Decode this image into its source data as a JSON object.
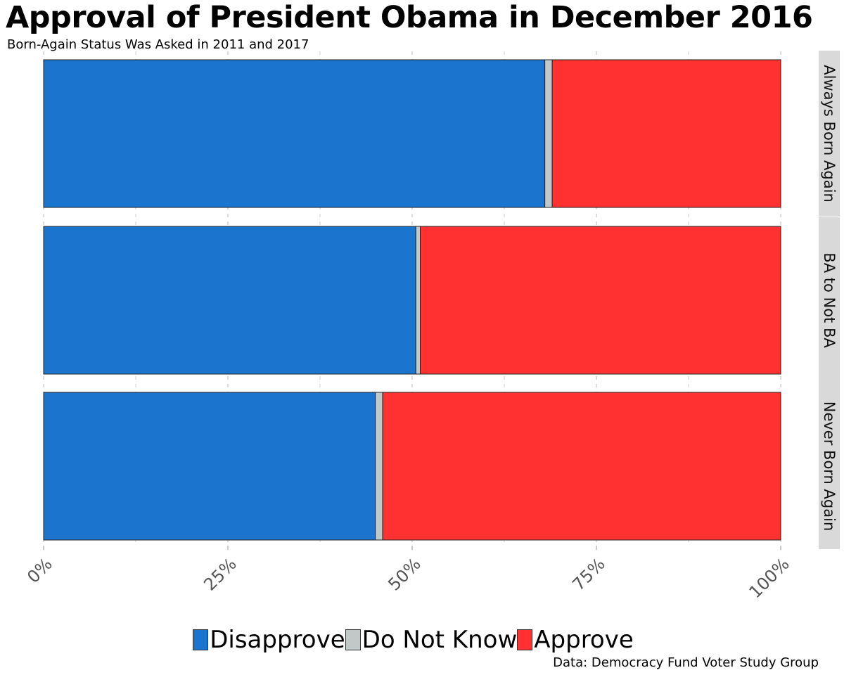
{
  "title": "Approval of President Obama in December 2016",
  "subtitle": "Born-Again Status Was Asked in 2011 and 2017",
  "caption": "Data: Democracy Fund Voter Study Group",
  "colors": {
    "Disapprove": "#1b75cf",
    "Do Not Know": "#c0c8c8",
    "Approve": "#ff3131"
  },
  "chart_data": {
    "type": "bar",
    "orientation": "horizontal",
    "stacked": true,
    "facets": [
      "Always Born Again",
      "BA to Not BA",
      "Never Born Again"
    ],
    "series": [
      {
        "name": "Disapprove",
        "values": [
          68,
          50.5,
          45
        ]
      },
      {
        "name": "Do Not Know",
        "values": [
          1,
          0.6,
          1
        ]
      },
      {
        "name": "Approve",
        "values": [
          31,
          48.9,
          54
        ]
      }
    ],
    "xlim": [
      0,
      100
    ],
    "xticks": [
      "0%",
      "25%",
      "50%",
      "75%",
      "100%"
    ],
    "xlabel": "",
    "ylabel": "",
    "legend": [
      "Disapprove",
      "Do Not Know",
      "Approve"
    ],
    "legend_position": "bottom",
    "grid": true
  }
}
